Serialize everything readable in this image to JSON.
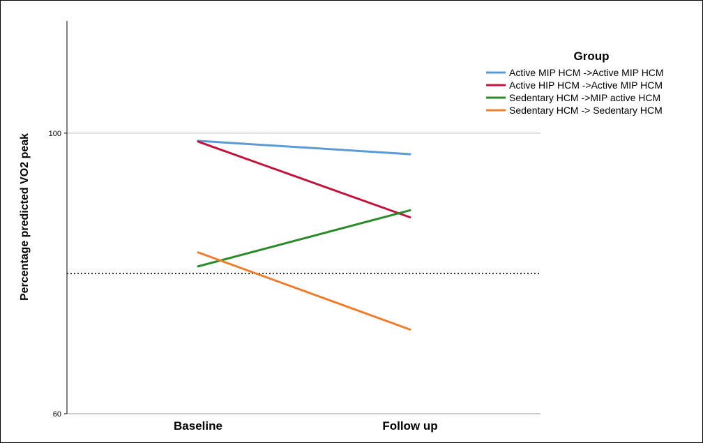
{
  "chart_data": {
    "type": "line",
    "title": "",
    "xlabel": "",
    "ylabel": "Percentage predicted VO2 peak",
    "categories": [
      "Baseline",
      "Follow up"
    ],
    "ylim": [
      60,
      116
    ],
    "yticks": [
      60,
      100
    ],
    "gridlines": [
      100
    ],
    "reference_line": 80,
    "legend": {
      "title": "Group",
      "position": "top-right"
    },
    "series": [
      {
        "name": "Active MIP HCM ->Active MIP HCM",
        "values": [
          98.9,
          97.0
        ],
        "color": "#5b9bd5"
      },
      {
        "name": "Active HIP HCM ->Active MIP HCM",
        "values": [
          98.8,
          88.0
        ],
        "color": "#c0143c"
      },
      {
        "name": "Sedentary HCM ->MIP active HCM",
        "values": [
          81.0,
          89.0
        ],
        "color": "#2b8a2b"
      },
      {
        "name": "Sedentary HCM -> Sedentary HCM",
        "values": [
          83.0,
          72.0
        ],
        "color": "#ef7d2e"
      }
    ]
  }
}
